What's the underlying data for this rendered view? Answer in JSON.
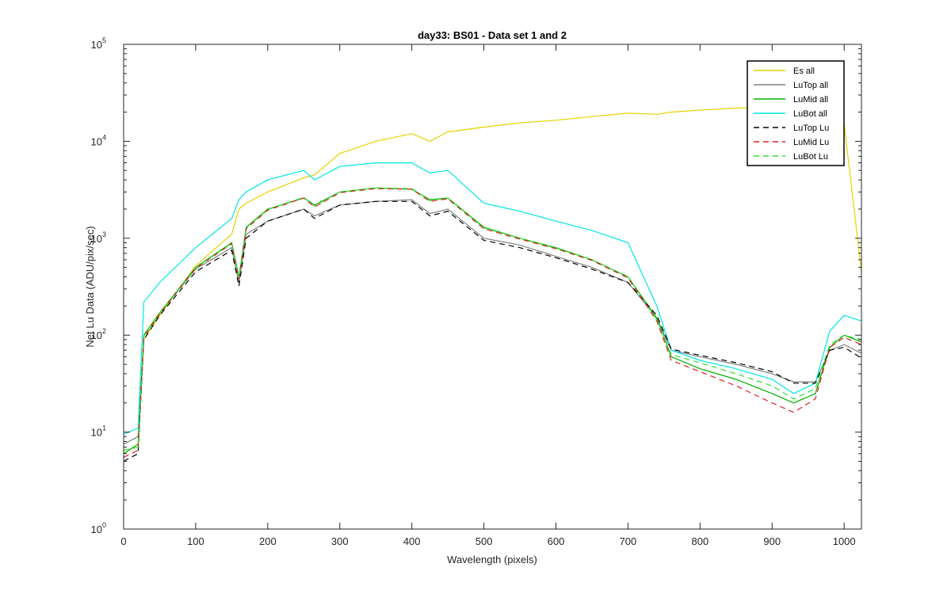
{
  "chart_data": {
    "type": "line",
    "title": "day33: BS01 - Data set 1 and 2",
    "xlabel": "Wavelength (pixels)",
    "ylabel": "Net Lu Data (ADU/pix/sec)",
    "xlim": [
      0,
      1024
    ],
    "ylim": [
      1,
      100000
    ],
    "yscale": "log",
    "grid": false,
    "legend_position": "top-right",
    "x_ticks": [
      0,
      100,
      200,
      300,
      400,
      500,
      600,
      700,
      800,
      900,
      1000
    ],
    "y_ticks": [
      {
        "base": "10",
        "exp": "0",
        "value": 1
      },
      {
        "base": "10",
        "exp": "1",
        "value": 10
      },
      {
        "base": "10",
        "exp": "2",
        "value": 100
      },
      {
        "base": "10",
        "exp": "3",
        "value": 1000
      },
      {
        "base": "10",
        "exp": "4",
        "value": 10000
      },
      {
        "base": "10",
        "exp": "5",
        "value": 100000
      }
    ],
    "x": [
      0,
      20,
      28,
      50,
      100,
      150,
      160,
      170,
      200,
      250,
      265,
      300,
      350,
      400,
      425,
      450,
      500,
      550,
      600,
      650,
      700,
      740,
      760,
      800,
      850,
      900,
      930,
      960,
      980,
      1000,
      1024
    ],
    "series": [
      {
        "name": "Es  all",
        "color": "#E6D200",
        "dash": "",
        "values": [
          6,
          7.5,
          90,
          160,
          520,
          1100,
          2000,
          2300,
          3000,
          4200,
          4500,
          7500,
          10000,
          12000,
          10000,
          12500,
          14000,
          15500,
          16500,
          18000,
          19500,
          19000,
          20000,
          21000,
          22000,
          22500,
          22000,
          20500,
          19000,
          15000,
          450
        ]
      },
      {
        "name": "LuTop  all",
        "color": "#808080",
        "dash": "",
        "values": [
          7.5,
          9,
          100,
          170,
          480,
          800,
          350,
          1100,
          1500,
          2000,
          1700,
          2200,
          2400,
          2500,
          1800,
          2000,
          1000,
          850,
          650,
          500,
          350,
          150,
          70,
          60,
          50,
          40,
          33,
          33,
          70,
          80,
          65
        ]
      },
      {
        "name": "LuMid  all",
        "color": "#00B000",
        "dash": "",
        "values": [
          6,
          7.5,
          100,
          170,
          500,
          900,
          400,
          1300,
          2000,
          2600,
          2200,
          3000,
          3300,
          3200,
          2500,
          2600,
          1300,
          1000,
          800,
          600,
          400,
          150,
          60,
          45,
          35,
          25,
          20,
          25,
          75,
          100,
          85
        ]
      },
      {
        "name": "LuBot  all",
        "color": "#00E6E6",
        "dash": "",
        "values": [
          9.5,
          11,
          220,
          350,
          800,
          1600,
          2500,
          3000,
          4000,
          5000,
          4000,
          5500,
          6000,
          6000,
          4700,
          5000,
          2300,
          1900,
          1500,
          1200,
          900,
          200,
          70,
          55,
          45,
          35,
          25,
          32,
          110,
          160,
          140
        ]
      },
      {
        "name": "LuTop  Lu",
        "color": "#000000",
        "dash": "7,5",
        "values": [
          5,
          6,
          90,
          160,
          450,
          750,
          320,
          1000,
          1500,
          2000,
          1600,
          2200,
          2400,
          2400,
          1700,
          1900,
          950,
          800,
          630,
          480,
          350,
          160,
          72,
          62,
          52,
          42,
          32,
          32,
          70,
          75,
          58
        ]
      },
      {
        "name": "LuMid  Lu",
        "color": "#E02020",
        "dash": "7,5",
        "values": [
          5.5,
          6.5,
          95,
          165,
          490,
          880,
          380,
          1250,
          1950,
          2600,
          2100,
          2950,
          3250,
          3200,
          2400,
          2550,
          1250,
          980,
          780,
          590,
          390,
          140,
          55,
          42,
          30,
          20,
          16,
          22,
          75,
          95,
          80
        ]
      },
      {
        "name": "LuBot  Lu",
        "color": "#33DD33",
        "dash": "7,5",
        "values": [
          6.5,
          7,
          98,
          168,
          495,
          890,
          390,
          1280,
          1980,
          2650,
          2150,
          3000,
          3300,
          3250,
          2450,
          2600,
          1280,
          1000,
          790,
          600,
          400,
          145,
          63,
          52,
          40,
          30,
          22,
          28,
          80,
          100,
          90
        ]
      }
    ]
  }
}
